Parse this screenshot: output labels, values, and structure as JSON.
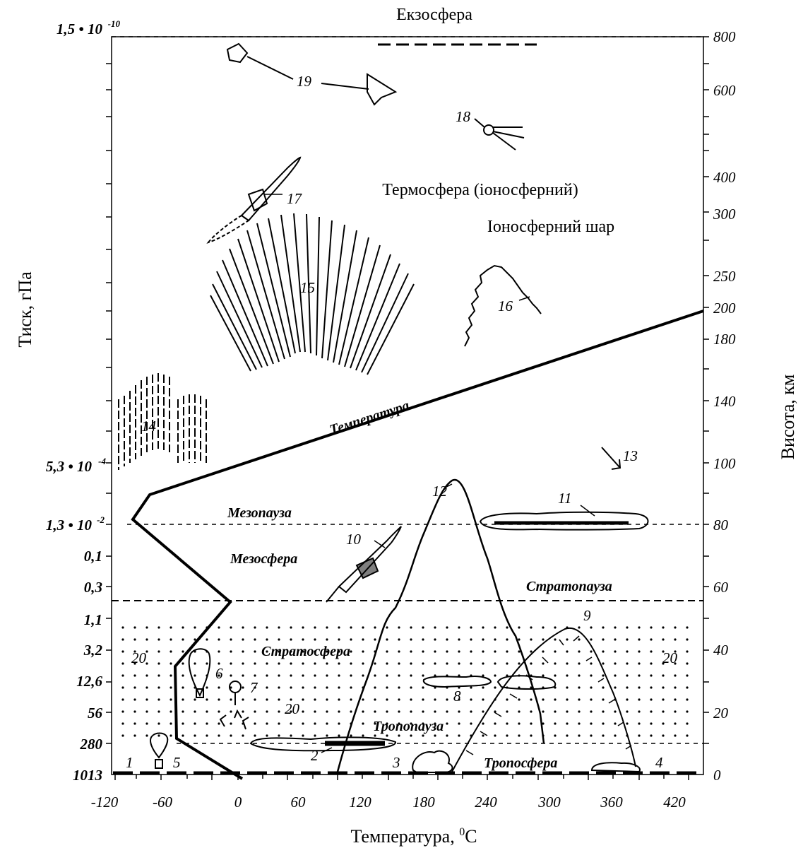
{
  "titles": {
    "exosphere": "Екзосфера",
    "thermosphere": "Термосфера (іоносферний)",
    "ionosphere": "Іоносферний шар",
    "x_axis": "Температура, ⁰С",
    "x_axis_main": "Температура, ",
    "x_axis_sup": "0",
    "x_axis_unit": "С",
    "y_left": "Тиск, гПа",
    "y_right": "Висота, км"
  },
  "layers": {
    "temperature": "Температура",
    "mesopause": "Мезопауза",
    "mesosphere": "Мезосфера",
    "stratopause": "Стратопауза",
    "stratosphere": "Стратосфера",
    "tropopause": "Тропопауза",
    "troposphere": "Тропосфера"
  },
  "pressure_labels": [
    "1,5 • 10",
    "-10",
    "5,3 • 10",
    "-4",
    "1,3 • 10",
    "-2",
    "0,1",
    "0,3",
    "1,1",
    "3,2",
    "12,6",
    "56",
    "280",
    "1013"
  ],
  "height_labels": [
    "800",
    "600",
    "400",
    "300",
    "250",
    "200",
    "180",
    "140",
    "100",
    "80",
    "60",
    "40",
    "20",
    "0"
  ],
  "temp_ticks": [
    "-120",
    "-60",
    "0",
    "60",
    "120",
    "180",
    "240",
    "300",
    "360",
    "420"
  ],
  "numbers": [
    "1",
    "2",
    "3",
    "4",
    "5",
    "6",
    "7",
    "8",
    "9",
    "10",
    "11",
    "12",
    "13",
    "14",
    "15",
    "16",
    "17",
    "18",
    "19",
    "20",
    "20",
    "20"
  ],
  "colors": {
    "ink": "#000000",
    "paper": "#ffffff"
  }
}
